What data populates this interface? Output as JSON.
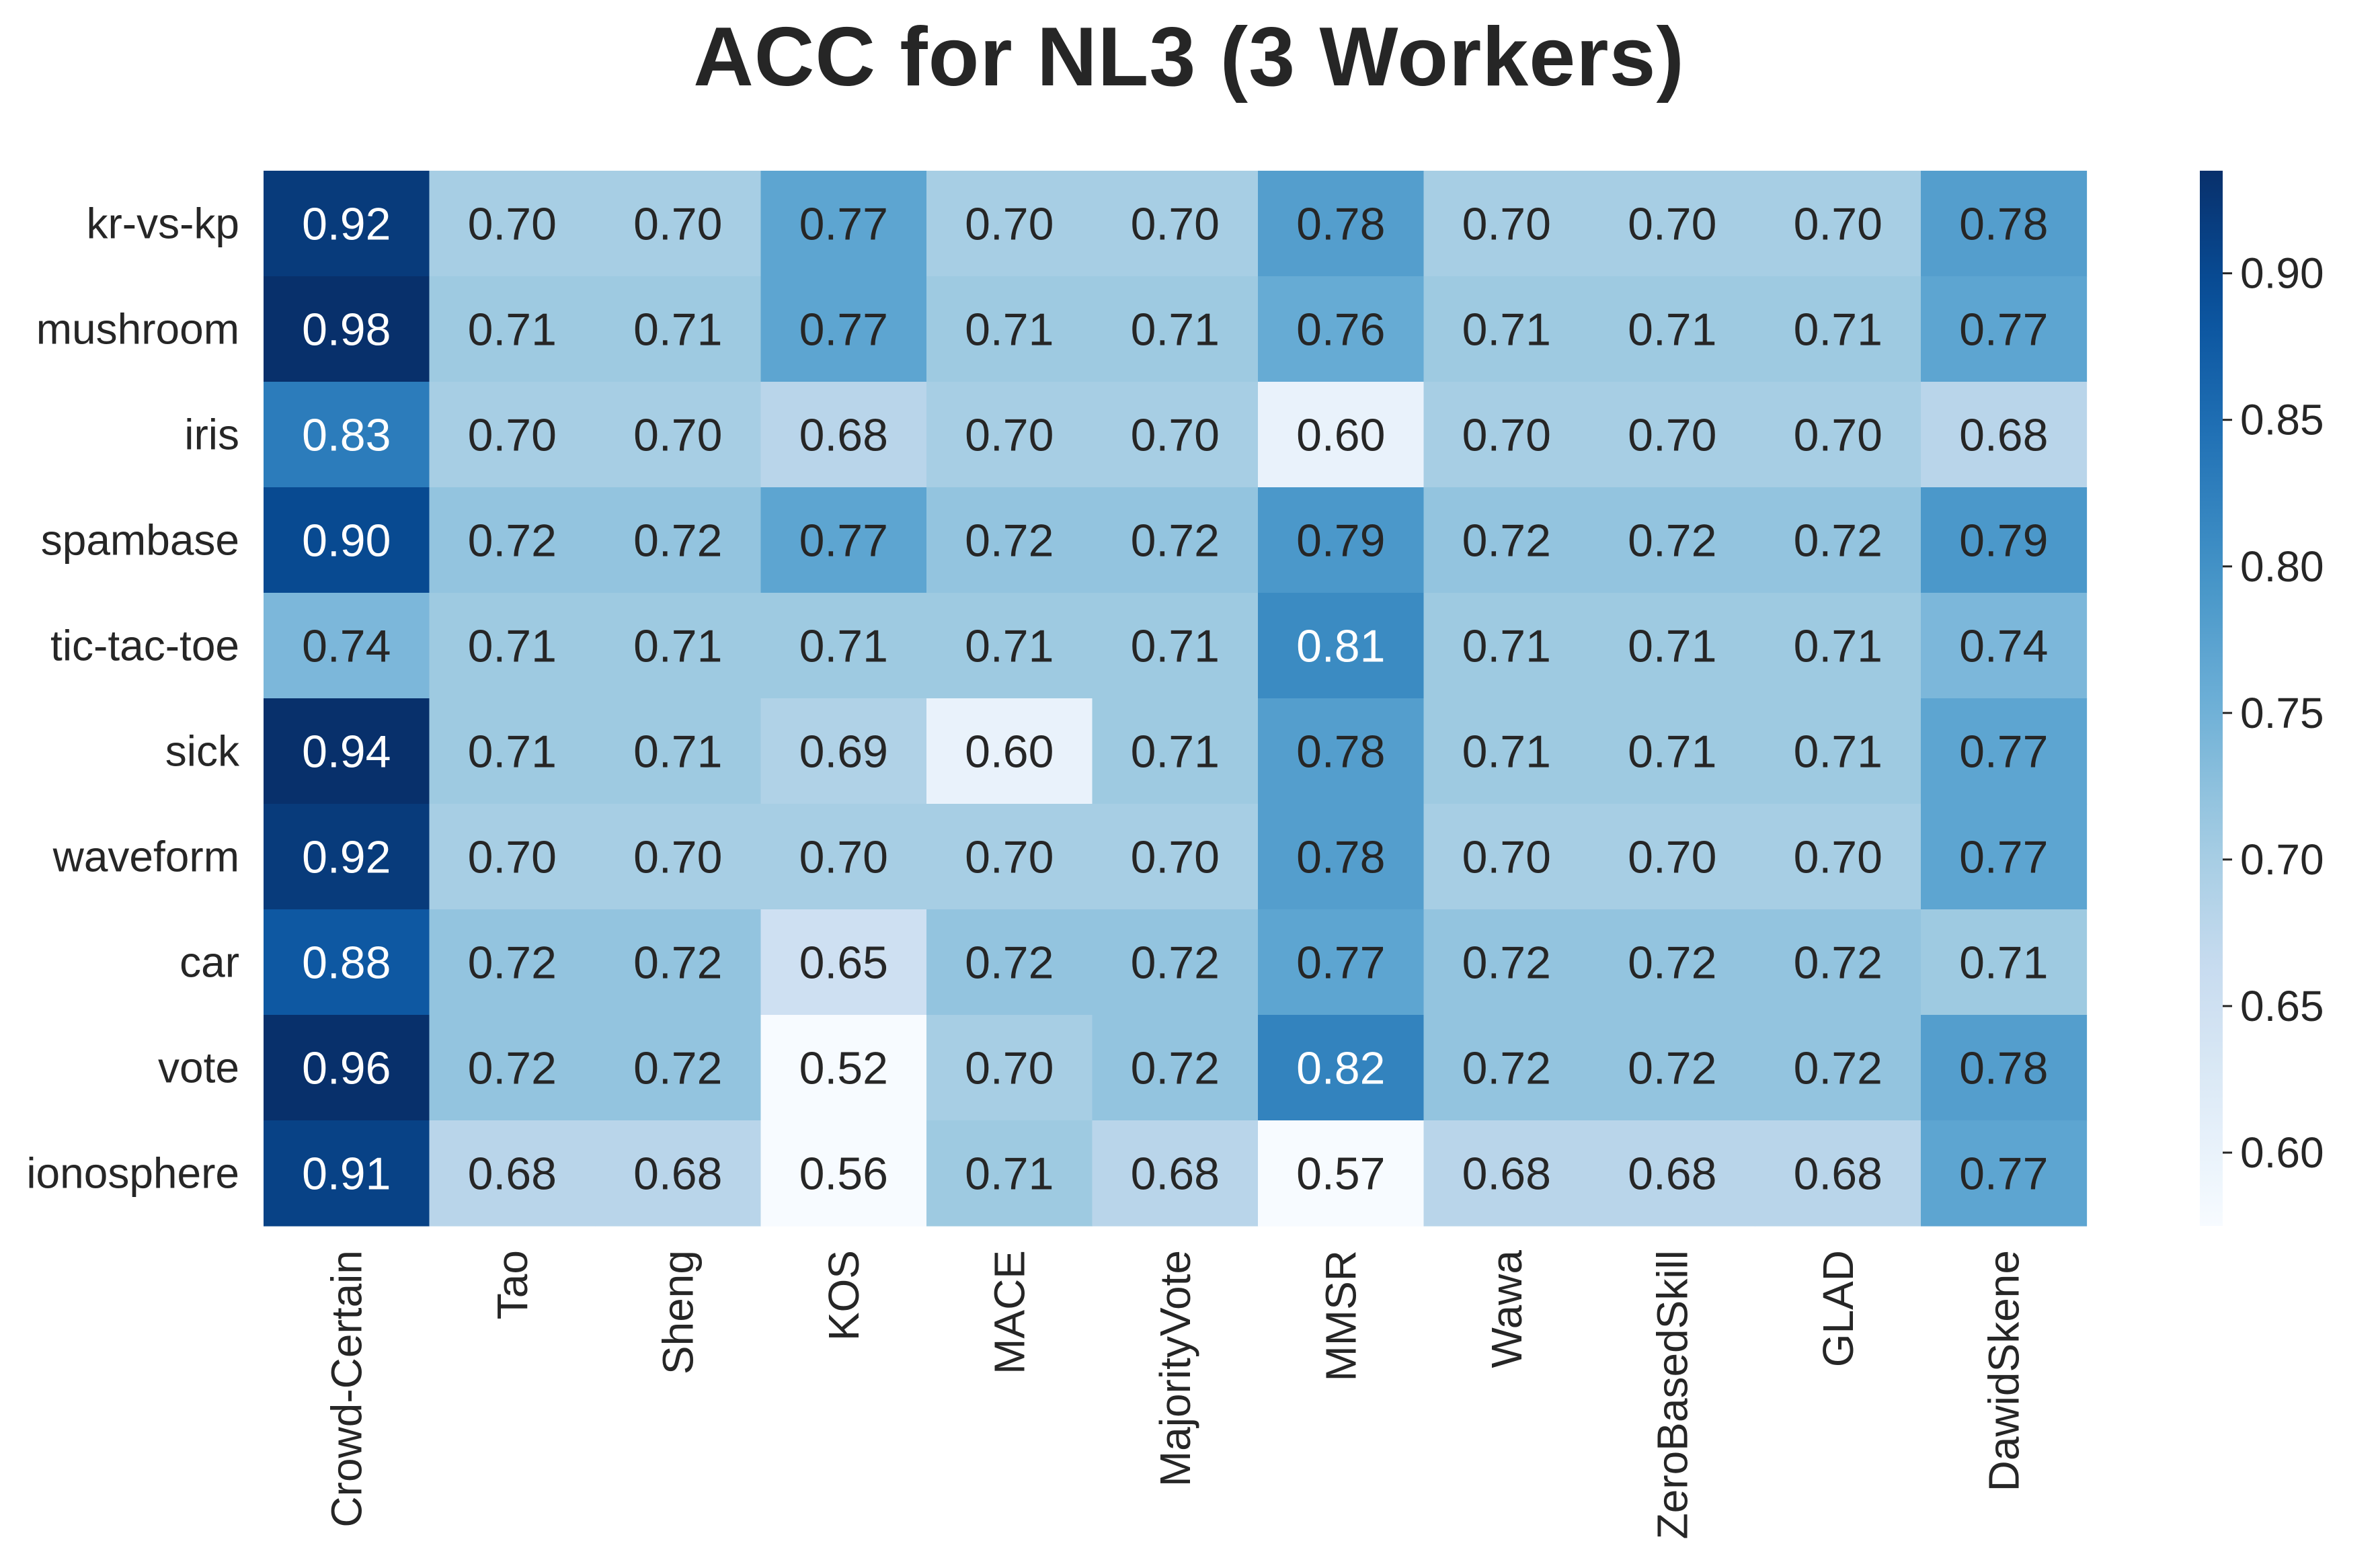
{
  "chart_data": {
    "type": "heatmap",
    "title": "ACC for NL3 (3 Workers)",
    "rows": [
      "kr-vs-kp",
      "mushroom",
      "iris",
      "spambase",
      "tic-tac-toe",
      "sick",
      "waveform",
      "car",
      "vote",
      "ionosphere"
    ],
    "columns": [
      "Crowd-Certain",
      "Tao",
      "Sheng",
      "KOS",
      "MACE",
      "MajorityVote",
      "MMSR",
      "Wawa",
      "ZeroBasedSkill",
      "GLAD",
      "DawidSkene"
    ],
    "values": [
      [
        0.92,
        0.7,
        0.7,
        0.77,
        0.7,
        0.7,
        0.78,
        0.7,
        0.7,
        0.7,
        0.78
      ],
      [
        0.98,
        0.71,
        0.71,
        0.77,
        0.71,
        0.71,
        0.76,
        0.71,
        0.71,
        0.71,
        0.77
      ],
      [
        0.83,
        0.7,
        0.7,
        0.68,
        0.7,
        0.7,
        0.6,
        0.7,
        0.7,
        0.7,
        0.68
      ],
      [
        0.9,
        0.72,
        0.72,
        0.77,
        0.72,
        0.72,
        0.79,
        0.72,
        0.72,
        0.72,
        0.79
      ],
      [
        0.74,
        0.71,
        0.71,
        0.71,
        0.71,
        0.71,
        0.81,
        0.71,
        0.71,
        0.71,
        0.74
      ],
      [
        0.94,
        0.71,
        0.71,
        0.69,
        0.6,
        0.71,
        0.78,
        0.71,
        0.71,
        0.71,
        0.77
      ],
      [
        0.92,
        0.7,
        0.7,
        0.7,
        0.7,
        0.7,
        0.78,
        0.7,
        0.7,
        0.7,
        0.77
      ],
      [
        0.88,
        0.72,
        0.72,
        0.65,
        0.72,
        0.72,
        0.77,
        0.72,
        0.72,
        0.72,
        0.71
      ],
      [
        0.96,
        0.72,
        0.72,
        0.52,
        0.7,
        0.72,
        0.82,
        0.72,
        0.72,
        0.72,
        0.78
      ],
      [
        0.91,
        0.68,
        0.68,
        0.56,
        0.71,
        0.68,
        0.57,
        0.68,
        0.68,
        0.68,
        0.77
      ]
    ],
    "value_format": "0.00",
    "colormap": "Blues",
    "color_range": [
      0.575,
      0.935
    ],
    "colorbar_ticks": [
      "0.60",
      "0.65",
      "0.70",
      "0.75",
      "0.80",
      "0.85",
      "0.90"
    ],
    "colorbar_placement": "right"
  }
}
